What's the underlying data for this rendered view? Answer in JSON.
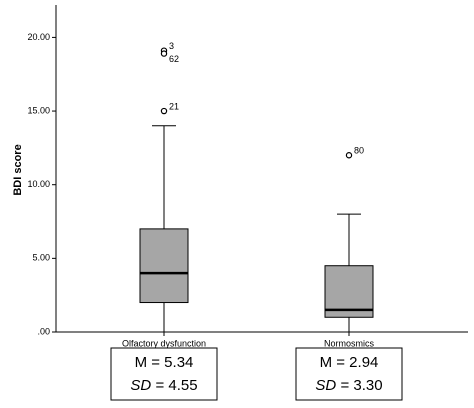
{
  "chart_data": {
    "type": "box",
    "y_label": "BDI score",
    "categories": [
      "Olfactory dysfunction",
      "Normosmics"
    ],
    "color": "#a6a6a6",
    "boxes": [
      {
        "whislo": 0,
        "q1": 2,
        "med": 4,
        "q3": 7,
        "whishi": 14,
        "outliers": [
          {
            "value": 19.1,
            "label": "3"
          },
          {
            "value": 18.9,
            "label": "62"
          },
          {
            "value": 15,
            "label": "21"
          }
        ]
      },
      {
        "whislo": 0,
        "q1": 1,
        "med": 1.5,
        "q3": 4.5,
        "whishi": 8,
        "outliers": [
          {
            "value": 12,
            "label": "80"
          }
        ]
      }
    ],
    "ylim": [
      0,
      22.2
    ],
    "yticks": [
      {
        "value": 0,
        "label": ".00"
      },
      {
        "value": 5,
        "label": "5.00"
      },
      {
        "value": 10,
        "label": "10.00"
      },
      {
        "value": 15,
        "label": "15.00"
      },
      {
        "value": 20,
        "label": "20.00"
      }
    ],
    "stats": [
      {
        "mean": "M = 5.34",
        "sd_label": "SD",
        "sd": "= 4.55"
      },
      {
        "mean": "M = 2.94",
        "sd_label": "SD",
        "sd": "= 3.30"
      }
    ]
  }
}
